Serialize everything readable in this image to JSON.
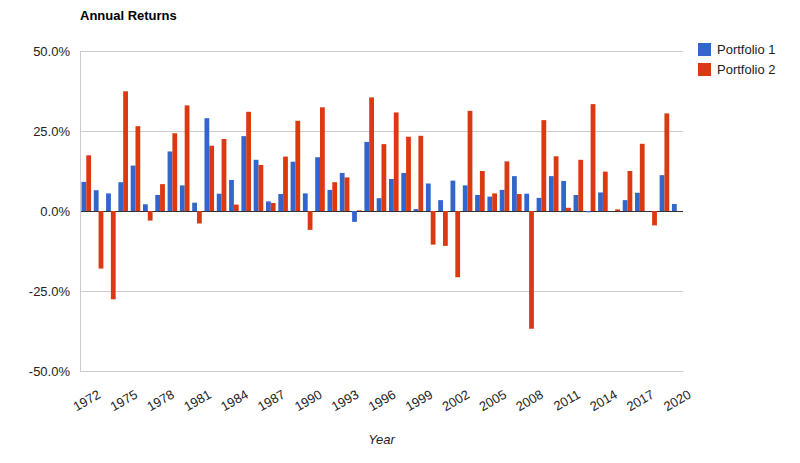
{
  "chart_data": {
    "type": "bar",
    "title": "Annual Returns",
    "x_label": "Year",
    "categories": [
      1972,
      null,
      null,
      1975,
      null,
      null,
      1978,
      null,
      null,
      1981,
      null,
      null,
      1984,
      null,
      null,
      1987,
      null,
      null,
      1990,
      null,
      null,
      1993,
      null,
      null,
      1996,
      null,
      null,
      1999,
      null,
      null,
      2002,
      null,
      null,
      2005,
      null,
      null,
      2008,
      null,
      null,
      2011,
      null,
      null,
      2014,
      null,
      null,
      2017,
      null,
      null,
      2020
    ],
    "series": [
      {
        "name": "Portfolio 1",
        "color": "#3366cc",
        "values": [
          9.1,
          6.5,
          5.5,
          9.0,
          14.2,
          2.1,
          5.0,
          18.6,
          8.0,
          2.6,
          29.0,
          5.4,
          9.7,
          23.4,
          16.0,
          3.0,
          5.3,
          15.4,
          5.5,
          16.8,
          6.6,
          11.9,
          -3.4,
          21.6,
          4.0,
          10.0,
          11.9,
          0.6,
          8.6,
          3.4,
          9.5,
          8.0,
          5.0,
          4.5,
          6.6,
          10.9,
          5.4,
          4.1,
          10.9,
          9.4,
          5.0,
          -0.4,
          5.8,
          0.0,
          3.4,
          5.7,
          0.0,
          11.2,
          2.2
        ]
      },
      {
        "name": "Portfolio 2",
        "color": "#dc3912",
        "values": [
          17.4,
          -18.0,
          -27.6,
          37.4,
          26.5,
          -3.0,
          8.4,
          24.3,
          33.0,
          -3.9,
          20.4,
          22.5,
          2.0,
          31.0,
          14.4,
          2.5,
          17.0,
          28.2,
          -5.9,
          32.4,
          9.0,
          10.5,
          0.2,
          35.5,
          20.9,
          30.8,
          23.2,
          23.5,
          -10.5,
          -10.9,
          -20.7,
          31.3,
          12.5,
          5.5,
          15.5,
          5.3,
          -36.8,
          28.4,
          17.1,
          1.0,
          16.0,
          33.4,
          12.3,
          0.5,
          12.5,
          21.0,
          -4.5,
          30.5,
          null
        ]
      }
    ],
    "ylim": [
      -50,
      50
    ],
    "yticks": [
      {
        "value": -50,
        "label": "-50.0%"
      },
      {
        "value": -25,
        "label": "-25.0%"
      },
      {
        "value": 0,
        "label": "0.0%"
      },
      {
        "value": 25,
        "label": "25.0%"
      },
      {
        "value": 50,
        "label": "50.0%"
      }
    ],
    "grid": true,
    "legend": "right"
  }
}
